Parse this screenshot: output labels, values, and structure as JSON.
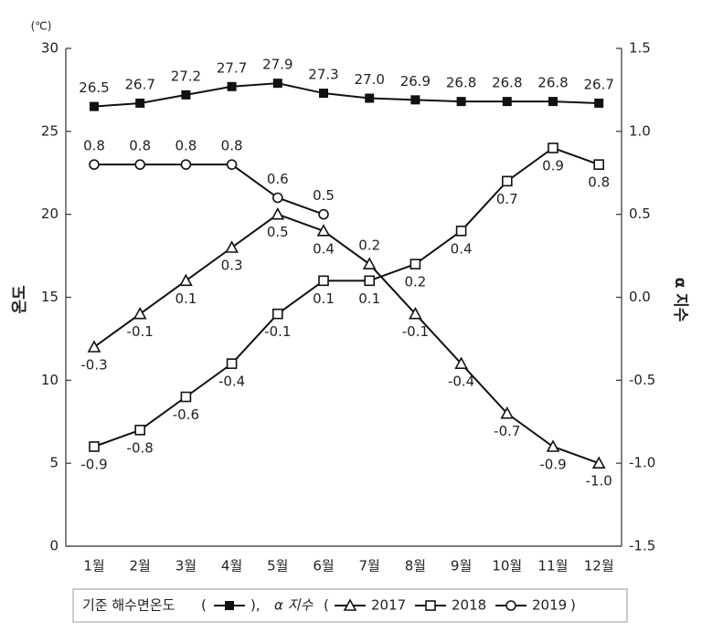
{
  "chart_data": {
    "type": "line",
    "categories": [
      "1월",
      "2월",
      "3월",
      "4월",
      "5월",
      "6월",
      "7월",
      "8월",
      "9월",
      "10월",
      "11월",
      "12월"
    ],
    "y_unit": "(℃)",
    "ylabel": "온도",
    "y2label": "α 지수",
    "ylim": [
      0,
      30
    ],
    "yticks": [
      0,
      5,
      10,
      15,
      20,
      25,
      30
    ],
    "y2lim": [
      -1.5,
      1.5
    ],
    "y2ticks": [
      {
        "value": 1.5,
        "label": "1.5"
      },
      {
        "value": 1,
        "label": "1.0"
      },
      {
        "value": 0.5,
        "label": "0.5"
      },
      {
        "value": 0,
        "label": "0.0"
      },
      {
        "value": -0.5,
        "label": "-0.5"
      },
      {
        "value": -1,
        "label": "-1.0"
      },
      {
        "value": -1.5,
        "label": "-1.5"
      }
    ],
    "legend_brackets": [
      "(",
      "),",
      "(",
      ")"
    ],
    "series": [
      {
        "name": "기준 해수면온도",
        "color": "#111",
        "marker": "filled-square",
        "values": [
          26.5,
          26.7,
          27.2,
          27.7,
          27.9,
          27.3,
          27.0,
          26.9,
          26.8,
          26.8,
          26.8,
          26.7
        ],
        "value_labels": [
          "26.5",
          "26.7",
          "27.2",
          "27.7",
          "27.9",
          "27.3",
          "27.0",
          "26.9",
          "26.8",
          "26.8",
          "26.8",
          "26.7"
        ]
      },
      {
        "name": "2017",
        "color": "#111",
        "marker": "triangle",
        "axis": "y2",
        "values": [
          -0.3,
          -0.1,
          0.1,
          0.3,
          0.5,
          0.4,
          0.2,
          -0.1,
          -0.4,
          -0.7,
          -0.9,
          -1.0
        ],
        "value_labels": [
          "-0.3",
          "-0.1",
          "0.1",
          "0.3",
          "0.5",
          "0.4",
          "0.2",
          "-0.1",
          "-0.4",
          "-0.7",
          "-0.9",
          "-1.0"
        ]
      },
      {
        "name": "2018",
        "color": "#111",
        "marker": "square",
        "axis": "y2",
        "values": [
          -0.9,
          -0.8,
          -0.6,
          -0.4,
          -0.1,
          0.1,
          0.1,
          0.2,
          0.4,
          0.7,
          0.9,
          0.8
        ]
      },
      {
        "name": "2019",
        "color": "#111",
        "marker": "circle",
        "axis": "y2",
        "values": [
          0.8,
          0.8,
          0.8,
          0.8,
          0.6,
          0.5,
          null,
          null,
          null,
          null,
          null,
          null
        ]
      }
    ]
  }
}
